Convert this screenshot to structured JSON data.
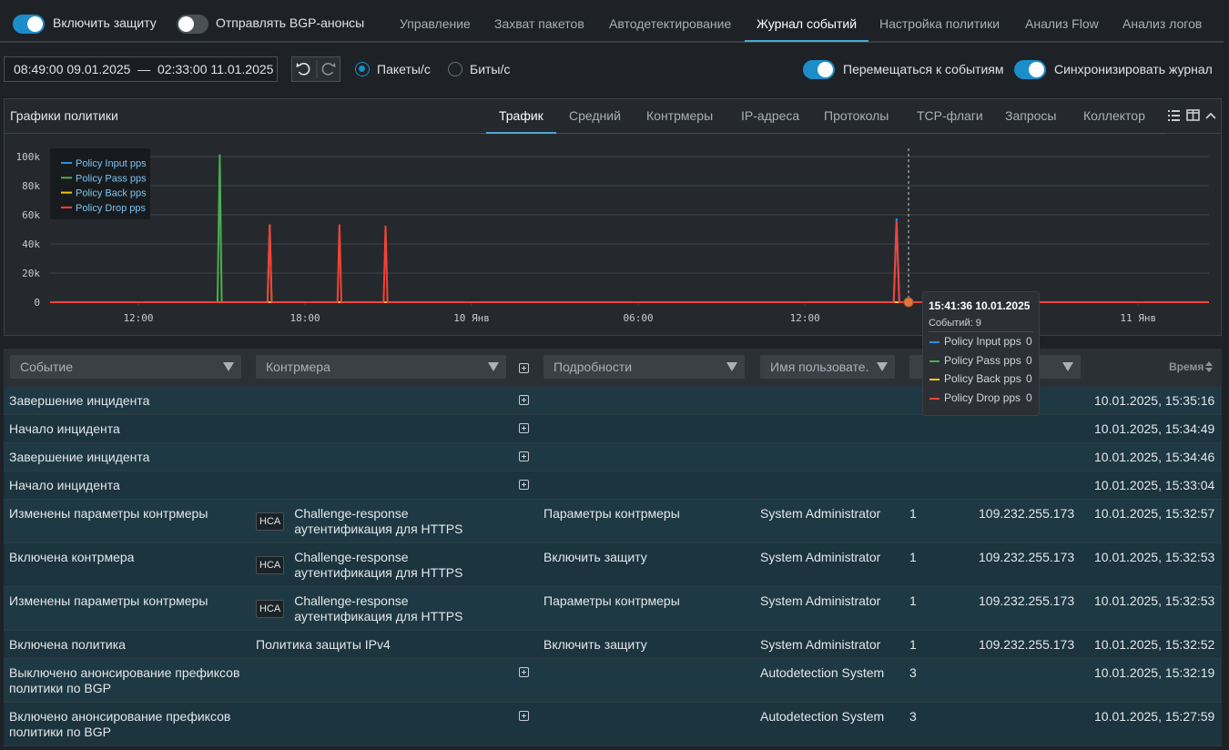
{
  "header": {
    "toggles": [
      {
        "label": "Включить защиту",
        "on": true
      },
      {
        "label": "Отправлять BGP-анонсы",
        "on": false
      }
    ],
    "tabs": [
      "Управление",
      "Захват пакетов",
      "Автодетектирование",
      "Журнал событий",
      "Настройка политики",
      "Анализ Flow",
      "Анализ логов"
    ],
    "active_tab": 3
  },
  "toolbar": {
    "date_range": "08:49:00 09.01.2025  —  02:33:00 11.01.2025",
    "units": [
      "Пакеты/с",
      "Биты/с"
    ],
    "selected_unit": 0,
    "toggles": [
      {
        "label": "Перемещаться к событиям",
        "on": true
      },
      {
        "label": "Синхронизировать журнал",
        "on": true
      }
    ]
  },
  "panel": {
    "title": "Графики политики",
    "tabs": [
      "Трафик",
      "Средний",
      "Контрмеры",
      "IP-адреса",
      "Протоколы",
      "TCP-флаги",
      "Запросы",
      "Коллектор"
    ],
    "active_tab": 0,
    "chart": {
      "type": "line",
      "x": [
        8.82,
        14.85,
        14.93,
        15.0,
        16.65,
        16.73,
        16.8,
        19.17,
        19.24,
        19.31,
        20.83,
        20.9,
        20.97,
        39.2,
        39.3,
        39.4,
        50.55
      ],
      "xlim": [
        8.82,
        50.55
      ],
      "xticks": [
        {
          "value": 12,
          "label": "12:00"
        },
        {
          "value": 18,
          "label": "18:00"
        },
        {
          "value": 24,
          "label": "10 Янв"
        },
        {
          "value": 30,
          "label": "06:00"
        },
        {
          "value": 36,
          "label": "12:00"
        },
        {
          "value": 48,
          "label": "11 Янв"
        }
      ],
      "ylim": [
        0,
        107500
      ],
      "yticks": [
        0,
        {
          "value": 20000,
          "label": "20k"
        },
        {
          "value": 40000,
          "label": "40k"
        },
        {
          "value": 60000,
          "label": "60k"
        },
        {
          "value": 80000,
          "label": "80k"
        },
        {
          "value": 100000,
          "label": "100k"
        }
      ],
      "grid": true,
      "series": [
        {
          "name": "Policy Input pps",
          "color": "#2f8fe0",
          "values": [
            0,
            0,
            0,
            0,
            0,
            0,
            0,
            0,
            0,
            0,
            0,
            0,
            0,
            0,
            57000,
            0,
            0
          ]
        },
        {
          "name": "Policy Pass pps",
          "color": "#4caf50",
          "values": [
            0,
            0,
            101000,
            0,
            0,
            53000,
            0,
            0,
            0,
            0,
            0,
            0,
            0,
            0,
            0,
            0,
            0
          ]
        },
        {
          "name": "Policy Back pps",
          "color": "#f5c518",
          "values": [
            0,
            0,
            0,
            0,
            0,
            0,
            0,
            0,
            0,
            0,
            0,
            0,
            0,
            0,
            0,
            0,
            0
          ]
        },
        {
          "name": "Policy Drop pps",
          "color": "#f44336",
          "values": [
            0,
            0,
            0,
            0,
            0,
            53000,
            0,
            0,
            53000,
            0,
            0,
            52000,
            0,
            0,
            55000,
            0,
            0
          ]
        }
      ],
      "tooltip": {
        "title": "15:41:36 10.01.2025",
        "events": "Событий: 9",
        "values": [
          0,
          0,
          0,
          0
        ]
      }
    }
  },
  "table": {
    "filters": [
      "Событие",
      "Контрмера",
      "Подробности",
      "Имя пользовате."
    ],
    "sort_column": "Время",
    "rows": [
      {
        "event": "Завершение инцидента",
        "time": "10.01.2025, 15:35:16"
      },
      {
        "event": "Начало инцидента",
        "time": "10.01.2025, 15:34:49"
      },
      {
        "event": "Завершение инцидента",
        "time": "10.01.2025, 15:34:46"
      },
      {
        "event": "Начало инцидента",
        "time": "10.01.2025, 15:33:04"
      },
      {
        "event": "Изменены параметры контрмеры",
        "badge": "HCA",
        "countermeasure": "Challenge-response аутентификация для HTTPS",
        "details": "Параметры контрмеры",
        "user": "System Administrator",
        "count": 1,
        "ip": "109.232.255.173",
        "time": "10.01.2025, 15:32:57"
      },
      {
        "event": "Включена контрмера",
        "badge": "HCA",
        "countermeasure": "Challenge-response аутентификация для HTTPS",
        "details": "Включить защиту",
        "user": "System Administrator",
        "count": 1,
        "ip": "109.232.255.173",
        "time": "10.01.2025, 15:32:53"
      },
      {
        "event": "Изменены параметры контрмеры",
        "badge": "HCA",
        "countermeasure": "Challenge-response аутентификация для HTTPS",
        "details": "Параметры контрмеры",
        "user": "System Administrator",
        "count": 1,
        "ip": "109.232.255.173",
        "time": "10.01.2025, 15:32:53"
      },
      {
        "event": "Включена политика",
        "countermeasure": "Политика защиты IPv4",
        "details": "Включить защиту",
        "user": "System Administrator",
        "count": 1,
        "ip": "109.232.255.173",
        "time": "10.01.2025, 15:32:52"
      },
      {
        "event": "Выключено анонсирование префиксов политики по BGP",
        "user": "Autodetection System",
        "count": 3,
        "time": "10.01.2025, 15:32:19"
      },
      {
        "event": "Включено анонсирование префиксов политики по BGP",
        "user": "Autodetection System",
        "count": 3,
        "time": "10.01.2025, 15:27:59"
      }
    ]
  }
}
